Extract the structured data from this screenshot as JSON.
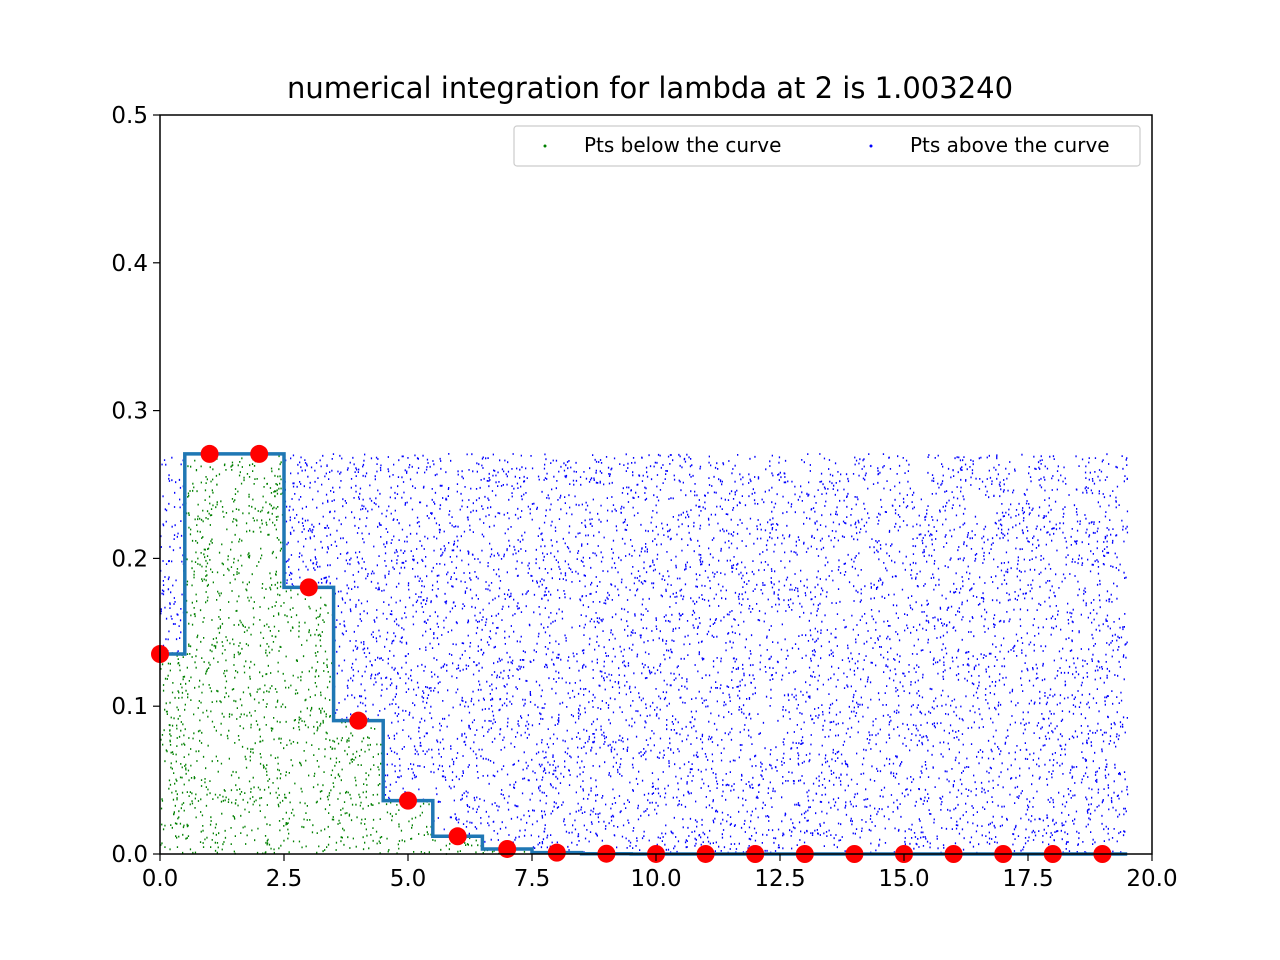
{
  "chart_data": {
    "type": "scatter",
    "title": "numerical integration for lambda at 2 is 1.003240",
    "xlabel": "",
    "ylabel": "",
    "xlim": [
      0,
      20
    ],
    "ylim": [
      0,
      0.5
    ],
    "x_ticks": [
      "0.0",
      "2.5",
      "5.0",
      "7.5",
      "10.0",
      "12.5",
      "15.0",
      "17.5",
      "20.0"
    ],
    "y_ticks": [
      "0.0",
      "0.1",
      "0.2",
      "0.3",
      "0.4",
      "0.5"
    ],
    "grid": false,
    "legend_position": "top-right",
    "legend": [
      {
        "label": "Pts below the curve",
        "color": "#008000"
      },
      {
        "label": "Pts above the curve",
        "color": "#0000ff"
      }
    ],
    "sample_region": {
      "x": [
        0,
        19.5
      ],
      "y": [
        0,
        0.2707
      ]
    },
    "poisson_pmf": {
      "lambda": 2,
      "x": [
        0,
        1,
        2,
        3,
        4,
        5,
        6,
        7,
        8,
        9,
        10,
        11,
        12,
        13,
        14,
        15,
        16,
        17,
        18,
        19
      ],
      "y": [
        0.1353,
        0.2707,
        0.2707,
        0.1804,
        0.0902,
        0.0361,
        0.012,
        0.0034,
        0.0009,
        0.0002,
        4e-05,
        1e-05,
        0,
        0,
        0,
        0,
        0,
        0,
        0,
        0
      ],
      "marker_color": "#ff0000",
      "step_color": "#1f77b4"
    }
  }
}
